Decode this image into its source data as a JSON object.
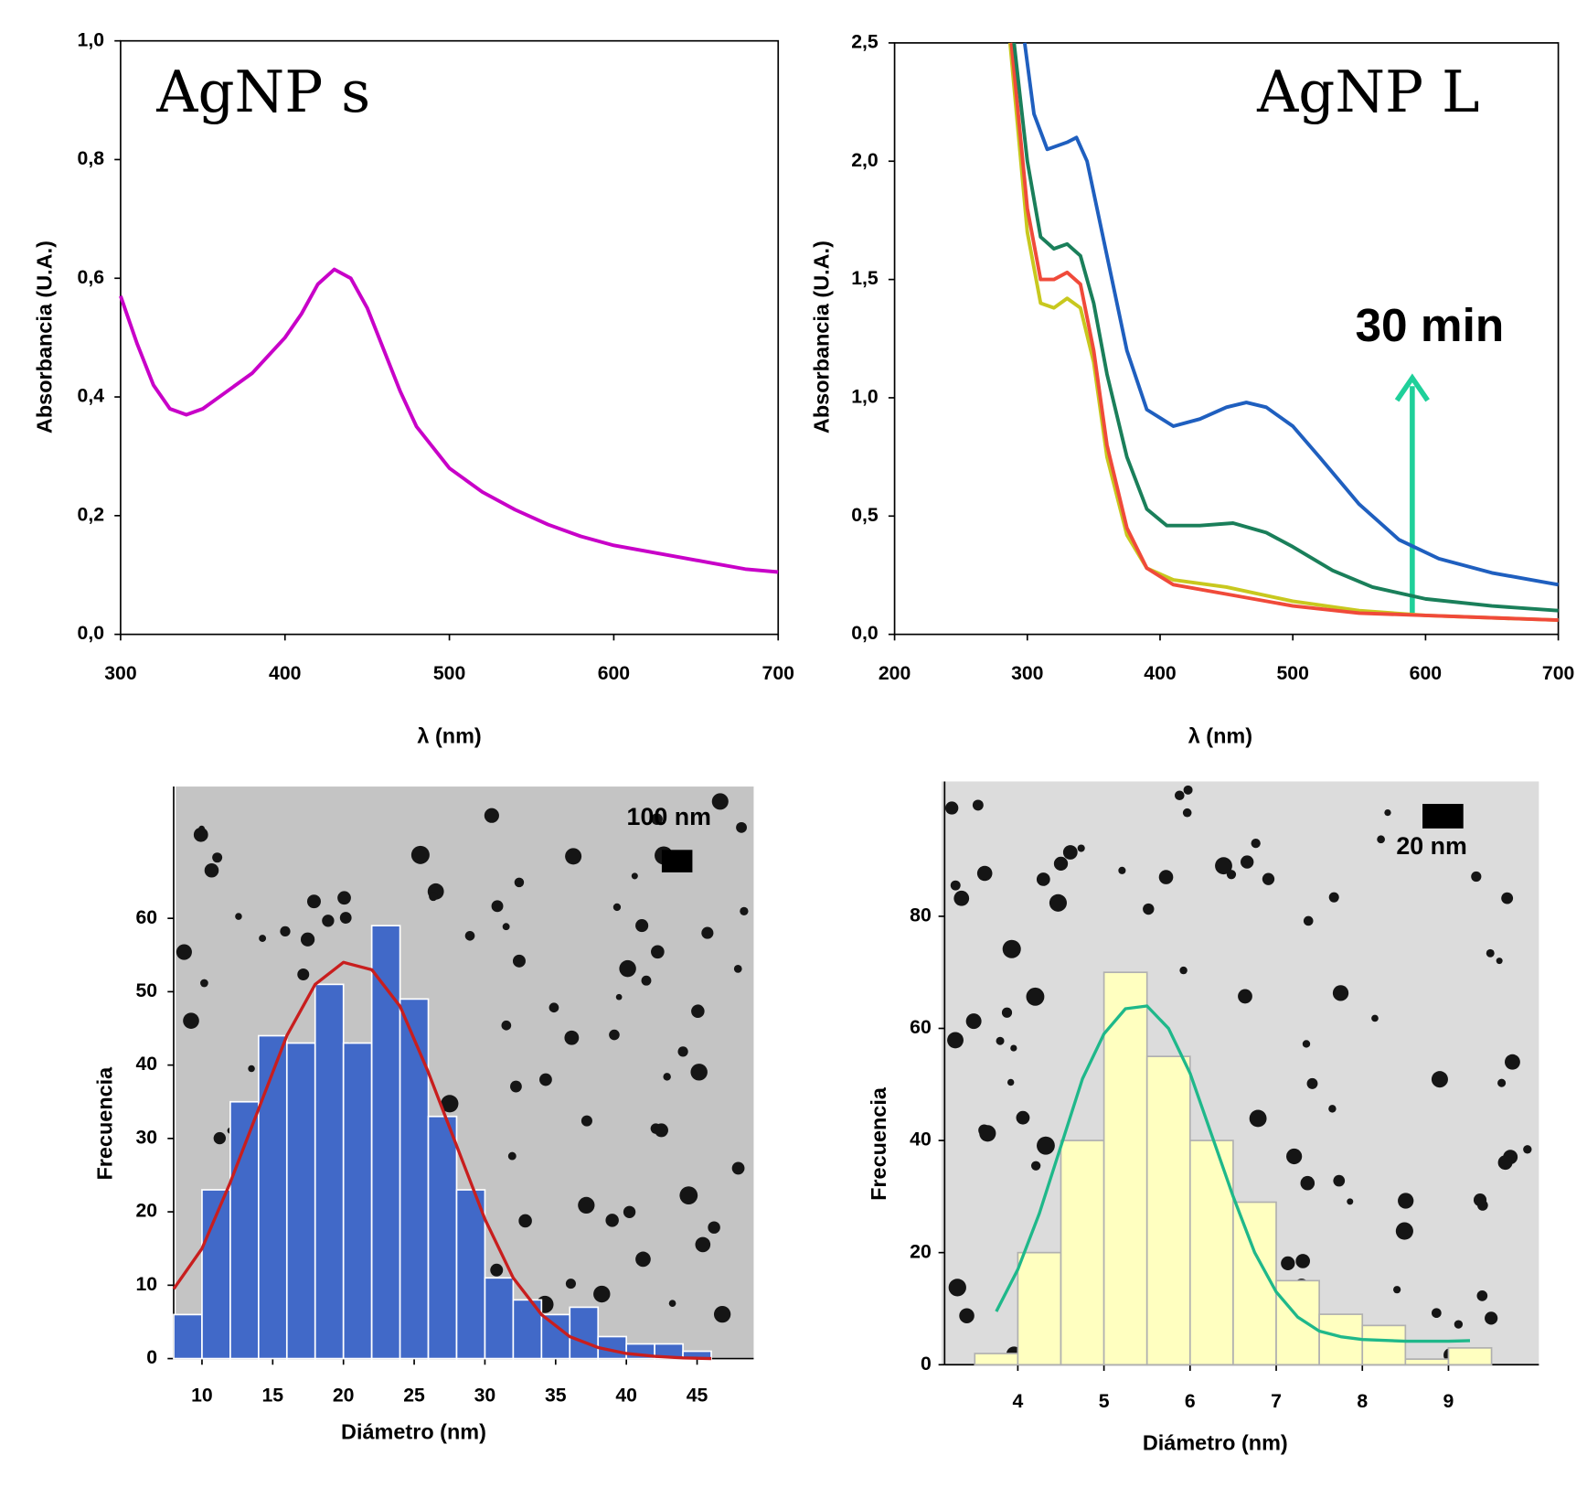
{
  "chart_data": [
    {
      "type": "line",
      "label": "AgNP s",
      "xlabel": "λ (nm)",
      "ylabel": "Absorbancia (U.A.)",
      "xlim": [
        300,
        700
      ],
      "ylim": [
        0,
        1
      ],
      "xticks": [
        300,
        400,
        500,
        600,
        700
      ],
      "yticks": [
        {
          "value": 0,
          "label": "0,0"
        },
        {
          "value": 0.2,
          "label": "0,2"
        },
        {
          "value": 0.4,
          "label": "0,4"
        },
        {
          "value": 0.6,
          "label": "0,6"
        },
        {
          "value": 0.8,
          "label": "0,8"
        },
        {
          "value": 1,
          "label": "1,0"
        }
      ],
      "series": [
        {
          "color": "#c800c8",
          "x": [
            300,
            310,
            320,
            330,
            340,
            350,
            360,
            380,
            400,
            410,
            420,
            430,
            440,
            450,
            460,
            470,
            480,
            500,
            520,
            540,
            560,
            580,
            600,
            620,
            640,
            660,
            680,
            700
          ],
          "values": [
            0.57,
            0.49,
            0.42,
            0.38,
            0.37,
            0.38,
            0.4,
            0.44,
            0.5,
            0.54,
            0.59,
            0.615,
            0.6,
            0.55,
            0.48,
            0.41,
            0.35,
            0.28,
            0.24,
            0.21,
            0.185,
            0.165,
            0.15,
            0.14,
            0.13,
            0.12,
            0.11,
            0.105
          ]
        }
      ]
    },
    {
      "type": "line",
      "label": "AgNP L",
      "annotation": "30 min",
      "xlabel": "λ (nm)",
      "ylabel": "Absorbancia (U.A.)",
      "xlim": [
        200,
        700
      ],
      "ylim": [
        0,
        2.5
      ],
      "xticks": [
        200,
        300,
        400,
        500,
        600,
        700
      ],
      "yticks": [
        {
          "value": 0,
          "label": "0,0"
        },
        {
          "value": 0.5,
          "label": "0,5"
        },
        {
          "value": 1,
          "label": "1,0"
        },
        {
          "value": 1.5,
          "label": "1,5"
        },
        {
          "value": 2,
          "label": "2,0"
        },
        {
          "value": 2.5,
          "label": "2,5"
        }
      ],
      "series": [
        {
          "color": "#c8c81e",
          "x": [
            287,
            300,
            310,
            320,
            330,
            340,
            350,
            360,
            375,
            390,
            410,
            450,
            500,
            550,
            600,
            700
          ],
          "values": [
            2.5,
            1.7,
            1.4,
            1.38,
            1.42,
            1.38,
            1.15,
            0.75,
            0.42,
            0.28,
            0.23,
            0.2,
            0.14,
            0.1,
            0.08,
            0.06
          ]
        },
        {
          "color": "#f04a3a",
          "x": [
            288,
            300,
            310,
            320,
            330,
            340,
            350,
            360,
            375,
            390,
            410,
            450,
            500,
            550,
            600,
            700
          ],
          "values": [
            2.5,
            1.8,
            1.5,
            1.5,
            1.53,
            1.48,
            1.2,
            0.8,
            0.45,
            0.28,
            0.21,
            0.17,
            0.12,
            0.09,
            0.08,
            0.06
          ]
        },
        {
          "color": "#1a7f5a",
          "x": [
            290,
            300,
            310,
            320,
            330,
            340,
            350,
            360,
            375,
            390,
            405,
            430,
            455,
            480,
            500,
            530,
            560,
            600,
            650,
            700
          ],
          "values": [
            2.5,
            2.0,
            1.68,
            1.63,
            1.65,
            1.6,
            1.4,
            1.1,
            0.75,
            0.53,
            0.46,
            0.46,
            0.47,
            0.43,
            0.37,
            0.27,
            0.2,
            0.15,
            0.12,
            0.1
          ]
        },
        {
          "color": "#1f5fbf",
          "x": [
            298,
            305,
            315,
            330,
            337,
            345,
            360,
            375,
            390,
            410,
            430,
            450,
            465,
            480,
            500,
            520,
            550,
            580,
            610,
            650,
            700
          ],
          "values": [
            2.5,
            2.2,
            2.05,
            2.08,
            2.1,
            2.0,
            1.6,
            1.2,
            0.95,
            0.88,
            0.91,
            0.96,
            0.98,
            0.96,
            0.88,
            0.75,
            0.55,
            0.4,
            0.32,
            0.26,
            0.21
          ]
        }
      ]
    },
    {
      "type": "histogram",
      "scale_bar": "100 nm",
      "xlabel": "Diámetro (nm)",
      "ylabel": "Frecuencia",
      "xlim": [
        8,
        49
      ],
      "ylim": [
        0,
        60
      ],
      "xticks": [
        10,
        15,
        20,
        25,
        30,
        35,
        40,
        45
      ],
      "yticks": [
        0,
        10,
        20,
        30,
        40,
        50,
        60
      ],
      "color": "#4169c8",
      "bins": [
        8,
        10,
        12,
        14,
        16,
        18,
        20,
        22,
        24,
        26,
        28,
        30,
        32,
        34,
        36,
        38,
        40,
        42,
        44,
        46
      ],
      "values": [
        6,
        23,
        35,
        44,
        43,
        51,
        43,
        59,
        49,
        33,
        23,
        11,
        8,
        6,
        7,
        3,
        2,
        2,
        1
      ],
      "fit": {
        "color": "#c81e1e",
        "x": [
          8,
          10,
          12,
          14,
          16,
          18,
          20,
          22,
          24,
          26,
          28,
          30,
          32,
          34,
          36,
          38,
          40,
          42,
          44,
          46
        ],
        "values": [
          9.5,
          15,
          24,
          34,
          44,
          51,
          54,
          53,
          48,
          39,
          29,
          19,
          11,
          6,
          3,
          1.5,
          0.7,
          0.3,
          0.1,
          0
        ]
      }
    },
    {
      "type": "histogram",
      "scale_bar": "20 nm",
      "xlabel": "Diámetro (nm)",
      "ylabel": "Frecuencia",
      "xlim": [
        3.15,
        10.05
      ],
      "ylim": [
        0,
        80
      ],
      "xticks": [
        4,
        5,
        6,
        7,
        8,
        9
      ],
      "yticks": [
        0,
        20,
        40,
        60,
        80
      ],
      "color": "#ffffc0",
      "bins": [
        3.5,
        4,
        4.5,
        5,
        5.5,
        6,
        6.5,
        7,
        7.5,
        8,
        8.5,
        9,
        9.5
      ],
      "values": [
        2,
        20,
        40,
        70,
        55,
        40,
        29,
        15,
        9,
        7,
        1,
        3
      ],
      "fit": {
        "color": "#1fb88a",
        "x": [
          3.75,
          4,
          4.25,
          4.5,
          4.75,
          5,
          5.25,
          5.5,
          5.75,
          6,
          6.25,
          6.5,
          6.75,
          7,
          7.25,
          7.5,
          7.75,
          8,
          8.5,
          9,
          9.25
        ],
        "values": [
          9.5,
          17,
          27,
          39,
          51,
          59,
          63.5,
          64,
          60,
          52,
          41,
          30,
          20,
          13,
          8.5,
          6,
          5,
          4.5,
          4.2,
          4.2,
          4.3
        ]
      }
    }
  ]
}
